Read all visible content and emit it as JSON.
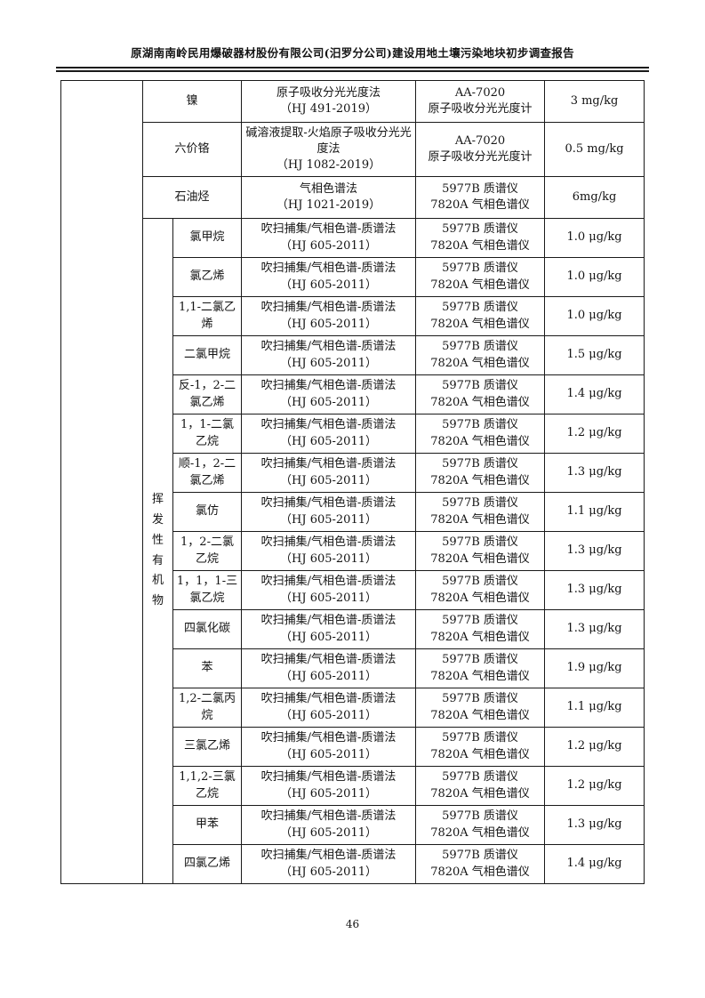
{
  "page": {
    "header_title": "原湖南南岭民用爆破器材股份有限公司(汨罗分公司)建设用地土壤污染地块初步调查报告",
    "page_number": "46"
  },
  "table": {
    "voc_group_label": "挥发性有机物",
    "rows": [
      {
        "name": "镍",
        "method": "原子吸收分光光度法",
        "standard": "（HJ 491-2019）",
        "instrument_line1": "AA-7020",
        "instrument_line2": "原子吸收分光光度计",
        "detection_limit": "3 mg/kg"
      },
      {
        "name": "六价铬",
        "method": "碱溶液提取-火焰原子吸收分光光度法",
        "standard": "（HJ 1082-2019）",
        "instrument_line1": "AA-7020",
        "instrument_line2": "原子吸收分光光度计",
        "detection_limit": "0.5 mg/kg"
      },
      {
        "name": "石油烃",
        "method": "气相色谱法",
        "standard": "（HJ 1021-2019）",
        "instrument_line1": "5977B 质谱仪",
        "instrument_line2": "7820A 气相色谱仪",
        "detection_limit": "6mg/kg"
      },
      {
        "name": "氯甲烷",
        "method": "吹扫捕集/气相色谱-质谱法",
        "standard": "（HJ 605-2011）",
        "instrument_line1": "5977B 质谱仪",
        "instrument_line2": "7820A 气相色谱仪",
        "detection_limit": "1.0 μg/kg"
      },
      {
        "name": "氯乙烯",
        "method": "吹扫捕集/气相色谱-质谱法",
        "standard": "（HJ 605-2011）",
        "instrument_line1": "5977B 质谱仪",
        "instrument_line2": "7820A 气相色谱仪",
        "detection_limit": "1.0 μg/kg"
      },
      {
        "name": "1,1-二氯乙烯",
        "method": "吹扫捕集/气相色谱-质谱法",
        "standard": "（HJ 605-2011）",
        "instrument_line1": "5977B 质谱仪",
        "instrument_line2": "7820A 气相色谱仪",
        "detection_limit": "1.0 μg/kg"
      },
      {
        "name": "二氯甲烷",
        "method": "吹扫捕集/气相色谱-质谱法",
        "standard": "（HJ 605-2011）",
        "instrument_line1": "5977B 质谱仪",
        "instrument_line2": "7820A 气相色谱仪",
        "detection_limit": "1.5 μg/kg"
      },
      {
        "name": "反-1，2-二氯乙烯",
        "method": "吹扫捕集/气相色谱-质谱法",
        "standard": "（HJ 605-2011）",
        "instrument_line1": "5977B 质谱仪",
        "instrument_line2": "7820A 气相色谱仪",
        "detection_limit": "1.4 μg/kg"
      },
      {
        "name": "1，1-二氯乙烷",
        "method": "吹扫捕集/气相色谱-质谱法",
        "standard": "（HJ 605-2011）",
        "instrument_line1": "5977B 质谱仪",
        "instrument_line2": "7820A 气相色谱仪",
        "detection_limit": "1.2 μg/kg"
      },
      {
        "name": "顺-1，2-二氯乙烯",
        "method": "吹扫捕集/气相色谱-质谱法",
        "standard": "（HJ 605-2011）",
        "instrument_line1": "5977B 质谱仪",
        "instrument_line2": "7820A 气相色谱仪",
        "detection_limit": "1.3 μg/kg"
      },
      {
        "name": "氯仿",
        "method": "吹扫捕集/气相色谱-质谱法",
        "standard": "（HJ 605-2011）",
        "instrument_line1": "5977B 质谱仪",
        "instrument_line2": "7820A 气相色谱仪",
        "detection_limit": "1.1 μg/kg"
      },
      {
        "name": "1，2-二氯乙烷",
        "method": "吹扫捕集/气相色谱-质谱法",
        "standard": "（HJ 605-2011）",
        "instrument_line1": "5977B 质谱仪",
        "instrument_line2": "7820A 气相色谱仪",
        "detection_limit": "1.3 μg/kg"
      },
      {
        "name": "1，1，1-三氯乙烷",
        "method": "吹扫捕集/气相色谱-质谱法",
        "standard": "（HJ 605-2011）",
        "instrument_line1": "5977B 质谱仪",
        "instrument_line2": "7820A 气相色谱仪",
        "detection_limit": "1.3 μg/kg"
      },
      {
        "name": "四氯化碳",
        "method": "吹扫捕集/气相色谱-质谱法",
        "standard": "（HJ 605-2011）",
        "instrument_line1": "5977B 质谱仪",
        "instrument_line2": "7820A 气相色谱仪",
        "detection_limit": "1.3 μg/kg"
      },
      {
        "name": "苯",
        "method": "吹扫捕集/气相色谱-质谱法",
        "standard": "（HJ 605-2011）",
        "instrument_line1": "5977B 质谱仪",
        "instrument_line2": "7820A 气相色谱仪",
        "detection_limit": "1.9 μg/kg"
      },
      {
        "name": "1,2-二氯丙烷",
        "method": "吹扫捕集/气相色谱-质谱法",
        "standard": "（HJ 605-2011）",
        "instrument_line1": "5977B 质谱仪",
        "instrument_line2": "7820A 气相色谱仪",
        "detection_limit": "1.1 μg/kg"
      },
      {
        "name": "三氯乙烯",
        "method": "吹扫捕集/气相色谱-质谱法",
        "standard": "（HJ 605-2011）",
        "instrument_line1": "5977B 质谱仪",
        "instrument_line2": "7820A 气相色谱仪",
        "detection_limit": "1.2 μg/kg"
      },
      {
        "name": "1,1,2-三氯乙烷",
        "method": "吹扫捕集/气相色谱-质谱法",
        "standard": "（HJ 605-2011）",
        "instrument_line1": "5977B 质谱仪",
        "instrument_line2": "7820A 气相色谱仪",
        "detection_limit": "1.2 μg/kg"
      },
      {
        "name": "甲苯",
        "method": "吹扫捕集/气相色谱-质谱法",
        "standard": "（HJ 605-2011）",
        "instrument_line1": "5977B 质谱仪",
        "instrument_line2": "7820A 气相色谱仪",
        "detection_limit": "1.3 μg/kg"
      },
      {
        "name": "四氯乙烯",
        "method": "吹扫捕集/气相色谱-质谱法",
        "standard": "（HJ 605-2011）",
        "instrument_line1": "5977B 质谱仪",
        "instrument_line2": "7820A 气相色谱仪",
        "detection_limit": "1.4 μg/kg"
      }
    ]
  }
}
